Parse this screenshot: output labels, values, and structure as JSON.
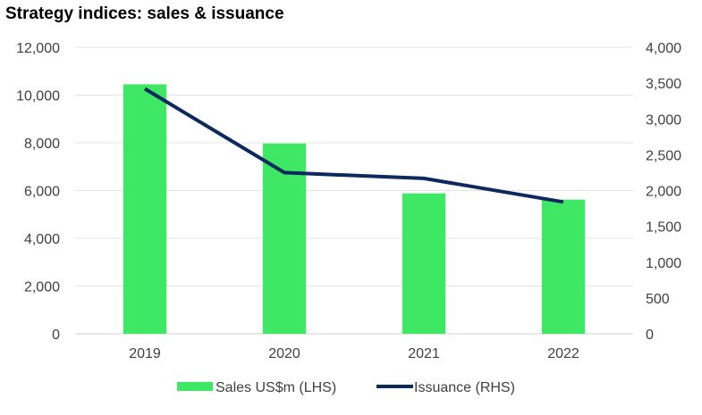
{
  "chart_data": {
    "type": "bar",
    "title": "Strategy indices: sales & issuance",
    "categories": [
      "2019",
      "2020",
      "2021",
      "2022"
    ],
    "series": [
      {
        "name": "Sales US$m (LHS)",
        "type": "bar",
        "axis": "left",
        "color": "#3ee865",
        "values": [
          10450,
          7970,
          5880,
          5620
        ]
      },
      {
        "name": "Issuance (RHS)",
        "type": "line",
        "axis": "right",
        "color": "#0d2a5e",
        "values": [
          3420,
          2250,
          2170,
          1840
        ]
      }
    ],
    "y_left": {
      "ylim": [
        0,
        12000
      ],
      "ticks": [
        "0",
        "2,000",
        "4,000",
        "6,000",
        "8,000",
        "10,000",
        "12,000"
      ],
      "tick_values": [
        0,
        2000,
        4000,
        6000,
        8000,
        10000,
        12000
      ]
    },
    "y_right": {
      "ylim": [
        0,
        4000
      ],
      "ticks": [
        "0",
        "500",
        "1,000",
        "1,500",
        "2,000",
        "2,500",
        "3,000",
        "3,500",
        "4,000"
      ],
      "tick_values": [
        0,
        500,
        1000,
        1500,
        2000,
        2500,
        3000,
        3500,
        4000
      ]
    },
    "grid": true,
    "legend_position": "bottom"
  }
}
